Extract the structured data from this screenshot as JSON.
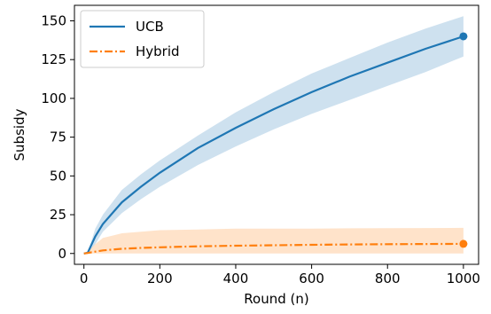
{
  "chart_data": {
    "type": "line",
    "title": "",
    "xlabel": "Round (n)",
    "ylabel": "Subsidy",
    "xlim": [
      -25,
      1040
    ],
    "ylim": [
      -7,
      160
    ],
    "xticks": [
      0,
      200,
      400,
      600,
      800,
      1000
    ],
    "yticks": [
      0,
      25,
      50,
      75,
      100,
      125,
      150
    ],
    "grid": false,
    "legend": "top-left",
    "series": [
      {
        "name": "UCB",
        "color": "#1f77b4",
        "style": "solid",
        "x": [
          0,
          10,
          30,
          50,
          100,
          150,
          200,
          300,
          400,
          500,
          600,
          700,
          800,
          900,
          1000
        ],
        "y": [
          0,
          0.5,
          11,
          19,
          33,
          43,
          52,
          68,
          81,
          93,
          104,
          114,
          123,
          132,
          140
        ],
        "lower": [
          0,
          0.5,
          6,
          14,
          26,
          35,
          43,
          57,
          69,
          80,
          90,
          99,
          108,
          117,
          127
        ],
        "upper": [
          0,
          0.5,
          16,
          25,
          41,
          51,
          60,
          76,
          91,
          104,
          116,
          126,
          136,
          145,
          153
        ],
        "end_marker": {
          "x": 1000,
          "y": 140,
          "xerr": 10
        }
      },
      {
        "name": "Hybrid",
        "color": "#ff7f0e",
        "style": "dashdot",
        "x": [
          0,
          10,
          30,
          50,
          100,
          150,
          200,
          300,
          400,
          500,
          600,
          700,
          800,
          900,
          1000
        ],
        "y": [
          0,
          0.3,
          1.2,
          2.0,
          3.0,
          3.6,
          4.0,
          4.6,
          5.0,
          5.3,
          5.6,
          5.8,
          6.0,
          6.1,
          6.2
        ],
        "lower": [
          0,
          0,
          0,
          0,
          0,
          0,
          0,
          0,
          0,
          0,
          0,
          0,
          0,
          0,
          0
        ],
        "upper": [
          0,
          1,
          6,
          10,
          13,
          14,
          15,
          15.5,
          16,
          16,
          16,
          16.2,
          16.3,
          16.4,
          16.5
        ],
        "end_marker": {
          "x": 1000,
          "y": 6.2,
          "xerr": 10
        }
      }
    ]
  }
}
